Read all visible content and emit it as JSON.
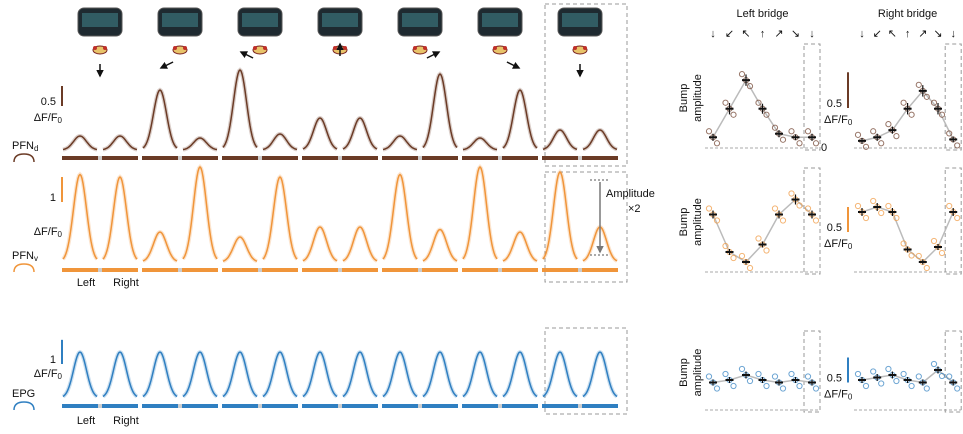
{
  "traces": [
    {
      "name": "PFN",
      "subscript": "d",
      "color": "#6b3b26",
      "scale_bar": 0.5,
      "ylim": [
        0,
        2.1
      ],
      "left_peaks": [
        0.35,
        1.5,
        2.0,
        0.8,
        0.35,
        0.3,
        0.5
      ],
      "right_peaks": [
        0.35,
        0.3,
        0.4,
        0.8,
        1.9,
        1.5,
        0.5
      ]
    },
    {
      "name": "PFN",
      "subscript": "v",
      "color": "#f0953a",
      "scale_bar": 1,
      "ylim": [
        0,
        4
      ],
      "left_peaks": [
        3.5,
        1.2,
        1.0,
        1.4,
        3.5,
        3.8,
        3.6
      ],
      "right_peaks": [
        3.4,
        3.8,
        3.4,
        1.4,
        1.3,
        1.2,
        1.4
      ]
    },
    {
      "name": "EPG",
      "color": "#2f7fc1",
      "scale_bar": 1,
      "ylim": [
        0,
        2.4
      ],
      "left_peaks": [
        1.9,
        1.9,
        1.9,
        1.9,
        1.9,
        1.9,
        1.9
      ],
      "right_peaks": [
        1.9,
        1.9,
        1.9,
        1.9,
        1.9,
        1.9,
        1.9
      ]
    }
  ],
  "unit": "ΔF/F",
  "unit_sub": "0",
  "x_labels": [
    "Left",
    "Right"
  ],
  "amplitude_note": [
    "Amplitude",
    "×2"
  ],
  "amplitude": {
    "y_label": [
      "Bump",
      "amplitude"
    ],
    "bridges": [
      "Left bridge",
      "Right bridge"
    ],
    "headings": [
      "↓",
      "↙",
      "↖",
      "↑",
      "↗",
      "↘",
      "↓"
    ],
    "zero_label": "0",
    "rows": [
      {
        "color": "#6b3b26",
        "scale_bar": 0.5,
        "ylim": [
          0,
          1.4
        ],
        "left": {
          "means": [
            0.15,
            0.55,
            0.95,
            0.55,
            0.2,
            0.15,
            0.15
          ],
          "errors": [
            0.05,
            0.08,
            0.08,
            0.07,
            0.05,
            0.04,
            0.05
          ]
        },
        "right": {
          "means": [
            0.1,
            0.15,
            0.25,
            0.55,
            0.8,
            0.55,
            0.12
          ],
          "errors": [
            0.04,
            0.05,
            0.05,
            0.08,
            0.08,
            0.08,
            0.04
          ]
        }
      },
      {
        "color": "#f0953a",
        "scale_bar": 0.5,
        "ylim": [
          0,
          2
        ],
        "left": {
          "means": [
            1.15,
            0.4,
            0.2,
            0.55,
            1.15,
            1.45,
            1.15
          ],
          "errors": [
            0.08,
            0.06,
            0.05,
            0.06,
            0.08,
            0.1,
            0.08
          ]
        },
        "right": {
          "means": [
            1.2,
            1.3,
            1.2,
            0.45,
            0.2,
            0.5,
            1.2
          ],
          "errors": [
            0.08,
            0.08,
            0.08,
            0.06,
            0.05,
            0.06,
            0.08
          ]
        }
      },
      {
        "color": "#2f7fc1",
        "scale_bar": 0.5,
        "ylim": [
          0,
          1.5
        ],
        "left": {
          "means": [
            0.55,
            0.6,
            0.7,
            0.6,
            0.55,
            0.6,
            0.55
          ],
          "errors": [
            0.06,
            0.06,
            0.07,
            0.06,
            0.06,
            0.06,
            0.06
          ]
        },
        "right": {
          "means": [
            0.6,
            0.65,
            0.7,
            0.6,
            0.55,
            0.8,
            0.55
          ],
          "errors": [
            0.06,
            0.07,
            0.07,
            0.06,
            0.06,
            0.07,
            0.06
          ]
        }
      }
    ]
  }
}
